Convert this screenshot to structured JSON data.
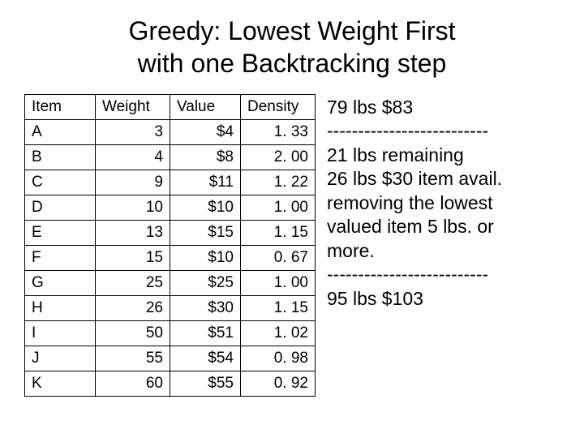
{
  "title_line1": "Greedy: Lowest Weight First",
  "title_line2": "with one Backtracking step",
  "table": {
    "columns": [
      "Item",
      "Weight",
      "Value",
      "Density"
    ],
    "rows": [
      {
        "item": "A",
        "weight": "3",
        "value": "$4",
        "density": "1. 33"
      },
      {
        "item": "B",
        "weight": "4",
        "value": "$8",
        "density": "2. 00"
      },
      {
        "item": "C",
        "weight": "9",
        "value": "$11",
        "density": "1. 22"
      },
      {
        "item": "D",
        "weight": "10",
        "value": "$10",
        "density": "1. 00"
      },
      {
        "item": "E",
        "weight": "13",
        "value": "$15",
        "density": "1. 15"
      },
      {
        "item": "F",
        "weight": "15",
        "value": "$10",
        "density": "0. 67"
      },
      {
        "item": "G",
        "weight": "25",
        "value": "$25",
        "density": "1. 00"
      },
      {
        "item": "H",
        "weight": "26",
        "value": "$30",
        "density": "1. 15"
      },
      {
        "item": "I",
        "weight": "50",
        "value": "$51",
        "density": "1. 02"
      },
      {
        "item": "J",
        "weight": "55",
        "value": "$54",
        "density": "0. 98"
      },
      {
        "item": "K",
        "weight": "60",
        "value": "$55",
        "density": "0. 92"
      }
    ]
  },
  "notes": {
    "line1": "79 lbs $83",
    "dash1": "--------------------------",
    "line2": "21 lbs remaining",
    "line3": "26 lbs $30 item avail.",
    "line4": "removing the lowest",
    "line5": "valued item 5 lbs. or",
    "line6": "more.",
    "dash2": "--------------------------",
    "line7": "95 lbs $103"
  }
}
